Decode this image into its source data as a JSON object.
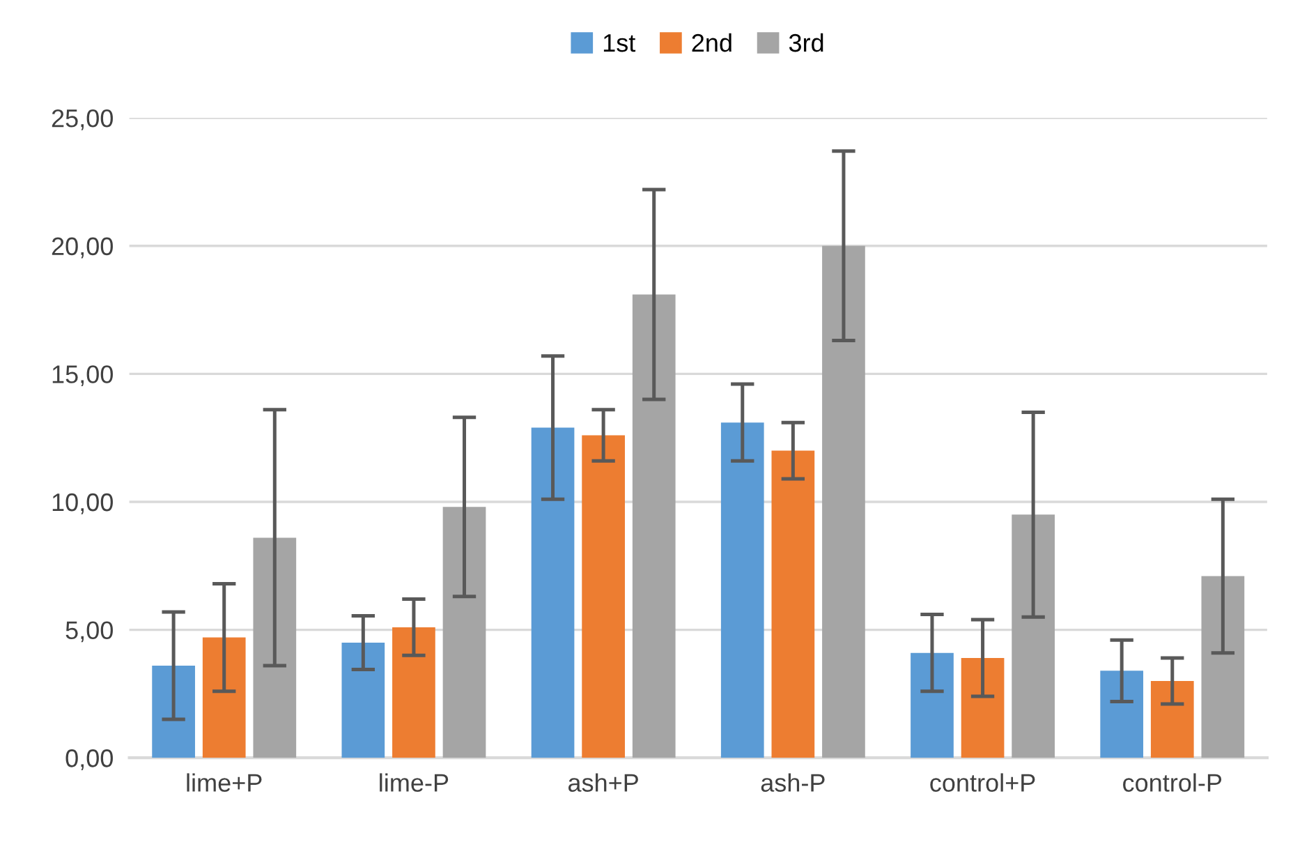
{
  "chart_data": {
    "type": "bar",
    "categories": [
      "lime+P",
      "lime-P",
      "ash+P",
      "ash-P",
      "control+P",
      "control-P"
    ],
    "series": [
      {
        "name": "1st",
        "color": "#5b9bd5",
        "values": [
          3.6,
          4.5,
          12.9,
          13.1,
          4.1,
          3.4
        ],
        "errors": [
          2.1,
          1.05,
          2.8,
          1.5,
          1.5,
          1.2
        ]
      },
      {
        "name": "2nd",
        "color": "#ed7d31",
        "values": [
          4.7,
          5.1,
          12.6,
          12.0,
          3.9,
          3.0
        ],
        "errors": [
          2.1,
          1.1,
          1.0,
          1.1,
          1.5,
          0.9
        ]
      },
      {
        "name": "3rd",
        "color": "#a5a5a5",
        "values": [
          8.6,
          9.8,
          18.1,
          20.0,
          9.5,
          7.1
        ],
        "errors": [
          5.0,
          3.5,
          4.1,
          3.7,
          4.0,
          3.0
        ]
      }
    ],
    "ylim": [
      0,
      25
    ],
    "yticks": [
      {
        "value": 0,
        "label": "0,00"
      },
      {
        "value": 5,
        "label": "5,00"
      },
      {
        "value": 10,
        "label": "10,00"
      },
      {
        "value": 15,
        "label": "15,00"
      },
      {
        "value": 20,
        "label": "20,00"
      },
      {
        "value": 25,
        "label": "25,00"
      }
    ],
    "grid": "y",
    "legend": "top"
  }
}
